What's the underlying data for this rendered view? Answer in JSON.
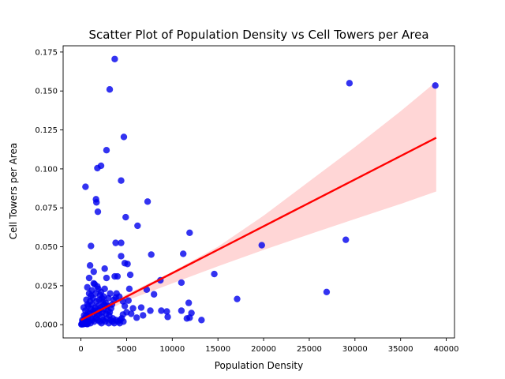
{
  "chart_data": {
    "type": "scatter",
    "title": "Scatter Plot of Population Density vs Cell Towers per Area",
    "xlabel": "Population Density",
    "ylabel": "Cell Towers per Area",
    "xlim": [
      -1950,
      40900
    ],
    "ylim": [
      -0.0085,
      0.179
    ],
    "x_ticks": [
      0,
      5000,
      10000,
      15000,
      20000,
      25000,
      30000,
      35000,
      40000
    ],
    "x_tick_labels": [
      "0",
      "5000",
      "10000",
      "15000",
      "20000",
      "25000",
      "30000",
      "35000",
      "40000"
    ],
    "y_ticks": [
      0.0,
      0.025,
      0.05,
      0.075,
      0.1,
      0.125,
      0.15,
      0.175
    ],
    "y_tick_labels": [
      "0.000",
      "0.025",
      "0.050",
      "0.075",
      "0.100",
      "0.125",
      "0.150",
      "0.175"
    ],
    "grid": false,
    "colors": {
      "points": "#0000ee",
      "regression_line": "#ff0000",
      "confidence_band": "#ffd6d6"
    },
    "regression": {
      "x": [
        0,
        38900
      ],
      "y": [
        0.003,
        0.12
      ]
    },
    "confidence_band": {
      "x": [
        0,
        5000,
        10000,
        15000,
        20000,
        25000,
        30000,
        35000,
        38900
      ],
      "lower": [
        0.0004,
        0.0155,
        0.0265,
        0.0375,
        0.048,
        0.058,
        0.0678,
        0.0775,
        0.0855
      ],
      "upper": [
        0.0058,
        0.0195,
        0.034,
        0.05,
        0.07,
        0.092,
        0.114,
        0.137,
        0.156
      ]
    },
    "series": [
      {
        "points": [
          [
            3700,
            0.1705
          ],
          [
            3150,
            0.151
          ],
          [
            29400,
            0.155
          ],
          [
            38800,
            0.1535
          ],
          [
            4700,
            0.1205
          ],
          [
            2800,
            0.112
          ],
          [
            2200,
            0.102
          ],
          [
            1800,
            0.1005
          ],
          [
            4400,
            0.0925
          ],
          [
            500,
            0.0885
          ],
          [
            1650,
            0.0805
          ],
          [
            1700,
            0.0785
          ],
          [
            7300,
            0.079
          ],
          [
            1850,
            0.0725
          ],
          [
            4900,
            0.069
          ],
          [
            6200,
            0.0635
          ],
          [
            11900,
            0.059
          ],
          [
            3800,
            0.0525
          ],
          [
            4400,
            0.0525
          ],
          [
            29000,
            0.0545
          ],
          [
            1100,
            0.0505
          ],
          [
            19800,
            0.051
          ],
          [
            11200,
            0.0455
          ],
          [
            7700,
            0.045
          ],
          [
            4400,
            0.044
          ],
          [
            4800,
            0.0395
          ],
          [
            5100,
            0.039
          ],
          [
            1000,
            0.038
          ],
          [
            2600,
            0.036
          ],
          [
            1400,
            0.034
          ],
          [
            5400,
            0.032
          ],
          [
            14600,
            0.0325
          ],
          [
            3700,
            0.031
          ],
          [
            4000,
            0.031
          ],
          [
            900,
            0.03
          ],
          [
            2800,
            0.03
          ],
          [
            8700,
            0.0285
          ],
          [
            11000,
            0.027
          ],
          [
            1400,
            0.0265
          ],
          [
            1800,
            0.0245
          ],
          [
            2600,
            0.023
          ],
          [
            5300,
            0.023
          ],
          [
            7200,
            0.0225
          ],
          [
            26900,
            0.021
          ],
          [
            8000,
            0.0195
          ],
          [
            1100,
            0.0185
          ],
          [
            3800,
            0.0175
          ],
          [
            17100,
            0.0165
          ],
          [
            5200,
            0.0155
          ],
          [
            2400,
            0.0145
          ],
          [
            11800,
            0.014
          ],
          [
            6600,
            0.011
          ],
          [
            5700,
            0.0105
          ],
          [
            3300,
            0.0105
          ],
          [
            8800,
            0.009
          ],
          [
            9400,
            0.0085
          ],
          [
            11000,
            0.009
          ],
          [
            12100,
            0.0075
          ],
          [
            4600,
            0.0065
          ],
          [
            6100,
            0.0045
          ],
          [
            9500,
            0.005
          ],
          [
            11600,
            0.004
          ],
          [
            11900,
            0.0045
          ],
          [
            13200,
            0.003
          ],
          [
            4300,
            0.003
          ],
          [
            3100,
            0.006
          ],
          [
            2000,
            0.007
          ],
          [
            1500,
            0.009
          ],
          [
            200,
            0.002
          ],
          [
            400,
            0.004
          ],
          [
            600,
            0.006
          ],
          [
            800,
            0.008
          ],
          [
            300,
            0.011
          ],
          [
            700,
            0.013
          ],
          [
            1000,
            0.015
          ],
          [
            1300,
            0.017
          ],
          [
            1600,
            0.02
          ],
          [
            1200,
            0.022
          ],
          [
            2100,
            0.019
          ],
          [
            2300,
            0.017
          ],
          [
            2700,
            0.014
          ],
          [
            2900,
            0.012
          ],
          [
            3400,
            0.013
          ],
          [
            3600,
            0.016
          ],
          [
            3900,
            0.02
          ],
          [
            4200,
            0.018
          ],
          [
            4600,
            0.015
          ],
          [
            4800,
            0.012
          ],
          [
            2500,
            0.01
          ],
          [
            1900,
            0.012
          ],
          [
            1100,
            0.01
          ],
          [
            800,
            0.012
          ],
          [
            500,
            0.009
          ],
          [
            1400,
            0.007
          ],
          [
            2300,
            0.005
          ],
          [
            3500,
            0.004
          ],
          [
            100,
            0.0005
          ],
          [
            250,
            0.001
          ],
          [
            450,
            0.0015
          ],
          [
            650,
            0.0005
          ],
          [
            850,
            0.002
          ],
          [
            1050,
            0.001
          ],
          [
            1250,
            0.003
          ],
          [
            1450,
            0.002
          ],
          [
            1650,
            0.004
          ],
          [
            1850,
            0.003
          ],
          [
            2050,
            0.002
          ],
          [
            2250,
            0.001
          ],
          [
            2450,
            0.003
          ],
          [
            2650,
            0.002
          ],
          [
            2850,
            0.004
          ],
          [
            3050,
            0.001
          ],
          [
            3250,
            0.003
          ],
          [
            3450,
            0.002
          ],
          [
            3650,
            0.001
          ],
          [
            3850,
            0.003
          ],
          [
            4050,
            0.002
          ],
          [
            4250,
            0.001
          ],
          [
            4450,
            0.004
          ],
          [
            4650,
            0.002
          ],
          [
            150,
            0.003
          ],
          [
            350,
            0.006
          ],
          [
            550,
            0.002
          ],
          [
            750,
            0.005
          ],
          [
            950,
            0.007
          ],
          [
            1150,
            0.004
          ],
          [
            1350,
            0.009
          ],
          [
            1550,
            0.011
          ],
          [
            1750,
            0.006
          ],
          [
            1950,
            0.009
          ],
          [
            2150,
            0.011
          ],
          [
            2350,
            0.008
          ],
          [
            2550,
            0.013
          ],
          [
            2750,
            0.007
          ],
          [
            2950,
            0.009
          ],
          [
            3150,
            0.008
          ],
          [
            600,
            0.016
          ],
          [
            900,
            0.02
          ],
          [
            1200,
            0.013
          ],
          [
            1700,
            0.015
          ],
          [
            2000,
            0.016
          ],
          [
            2200,
            0.021
          ],
          [
            2500,
            0.018
          ],
          [
            3000,
            0.017
          ],
          [
            3200,
            0.02
          ],
          [
            700,
            0.024
          ],
          [
            1500,
            0.026
          ],
          [
            1900,
            0.023
          ],
          [
            50,
            0.0002
          ],
          [
            120,
            0.0008
          ],
          [
            220,
            0.0003
          ],
          [
            320,
            0.0012
          ],
          [
            420,
            0.0006
          ],
          [
            520,
            0.0009
          ],
          [
            620,
            0.0015
          ],
          [
            720,
            0.0004
          ],
          [
            5000,
            0.008
          ],
          [
            5500,
            0.007
          ],
          [
            6800,
            0.006
          ],
          [
            7600,
            0.009
          ]
        ]
      }
    ]
  }
}
